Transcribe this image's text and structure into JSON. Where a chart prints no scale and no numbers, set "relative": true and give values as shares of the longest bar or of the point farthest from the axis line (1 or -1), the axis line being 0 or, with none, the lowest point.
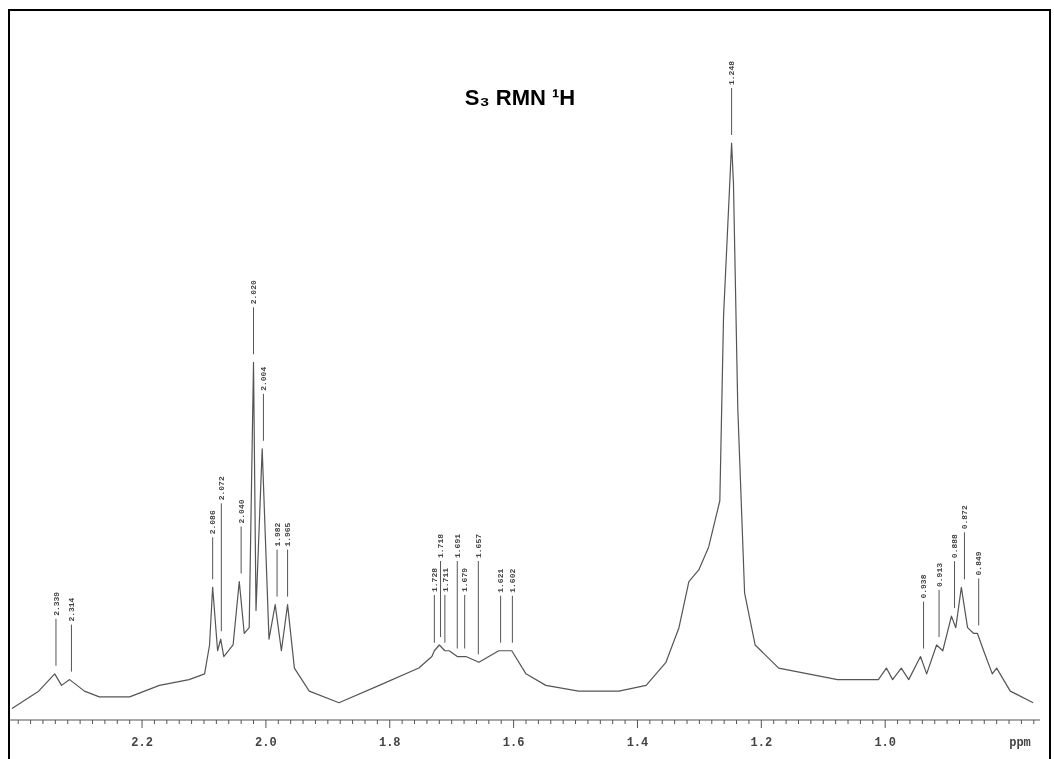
{
  "chart_data": {
    "type": "line",
    "title": "S₃ RMN ¹H",
    "xlabel": "ppm",
    "relative": true,
    "xlim": [
      2.41,
      0.75
    ],
    "xticks": [
      {
        "value": 2.4,
        "label": null
      },
      {
        "value": 2.38,
        "label": null
      },
      {
        "value": 2.36,
        "label": null
      },
      {
        "value": 2.34,
        "label": null
      },
      {
        "value": 2.32,
        "label": null
      },
      {
        "value": 2.3,
        "label": null
      },
      {
        "value": 2.28,
        "label": null
      },
      {
        "value": 2.26,
        "label": null
      },
      {
        "value": 2.24,
        "label": null
      },
      {
        "value": 2.22,
        "label": null
      },
      2.2,
      {
        "value": 2.18,
        "label": null
      },
      {
        "value": 2.16,
        "label": null
      },
      {
        "value": 2.14,
        "label": null
      },
      {
        "value": 2.12,
        "label": null
      },
      {
        "value": 2.1,
        "label": null
      },
      {
        "value": 2.08,
        "label": null
      },
      {
        "value": 2.06,
        "label": null
      },
      {
        "value": 2.04,
        "label": null
      },
      {
        "value": 2.02,
        "label": null
      },
      {
        "value": 2,
        "label": "2.0"
      },
      {
        "value": 1.98,
        "label": null
      },
      {
        "value": 1.96,
        "label": null
      },
      {
        "value": 1.94,
        "label": null
      },
      {
        "value": 1.92,
        "label": null
      },
      {
        "value": 1.9,
        "label": null
      },
      {
        "value": 1.88,
        "label": null
      },
      {
        "value": 1.86,
        "label": null
      },
      {
        "value": 1.84,
        "label": null
      },
      {
        "value": 1.82,
        "label": null
      },
      1.8,
      {
        "value": 1.78,
        "label": null
      },
      {
        "value": 1.76,
        "label": null
      },
      {
        "value": 1.74,
        "label": null
      },
      {
        "value": 1.72,
        "label": null
      },
      {
        "value": 1.7,
        "label": null
      },
      {
        "value": 1.68,
        "label": null
      },
      {
        "value": 1.66,
        "label": null
      },
      {
        "value": 1.64,
        "label": null
      },
      {
        "value": 1.62,
        "label": null
      },
      1.6,
      {
        "value": 1.58,
        "label": null
      },
      {
        "value": 1.56,
        "label": null
      },
      {
        "value": 1.54,
        "label": null
      },
      {
        "value": 1.52,
        "label": null
      },
      {
        "value": 1.5,
        "label": null
      },
      {
        "value": 1.48,
        "label": null
      },
      {
        "value": 1.46,
        "label": null
      },
      {
        "value": 1.44,
        "label": null
      },
      {
        "value": 1.42,
        "label": null
      },
      1.4,
      {
        "value": 1.38,
        "label": null
      },
      {
        "value": 1.36,
        "label": null
      },
      {
        "value": 1.34,
        "label": null
      },
      {
        "value": 1.32,
        "label": null
      },
      {
        "value": 1.3,
        "label": null
      },
      {
        "value": 1.28,
        "label": null
      },
      {
        "value": 1.26,
        "label": null
      },
      {
        "value": 1.24,
        "label": null
      },
      {
        "value": 1.22,
        "label": null
      },
      1.2,
      {
        "value": 1.18,
        "label": null
      },
      {
        "value": 1.16,
        "label": null
      },
      {
        "value": 1.14,
        "label": null
      },
      {
        "value": 1.12,
        "label": null
      },
      {
        "value": 1.1,
        "label": null
      },
      {
        "value": 1.08,
        "label": null
      },
      {
        "value": 1.06,
        "label": null
      },
      {
        "value": 1.04,
        "label": null
      },
      {
        "value": 1.02,
        "label": null
      },
      {
        "value": 1,
        "label": "1.0"
      },
      {
        "value": 0.98,
        "label": null
      },
      {
        "value": 0.96,
        "label": null
      },
      {
        "value": 0.94,
        "label": null
      },
      {
        "value": 0.92,
        "label": null
      },
      {
        "value": 0.9,
        "label": null
      },
      {
        "value": 0.88,
        "label": null
      },
      {
        "value": 0.86,
        "label": null
      },
      {
        "value": 0.84,
        "label": null
      },
      {
        "value": 0.82,
        "label": null
      },
      {
        "value": 0.8,
        "label": null
      },
      {
        "value": 0.78,
        "label": null
      },
      {
        "value": 0.76,
        "label": null
      }
    ],
    "series": [
      {
        "color": "#555555",
        "x": [
          2.41,
          2.367,
          2.341,
          2.33,
          2.317,
          2.293,
          2.269,
          2.22,
          2.172,
          2.124,
          2.099,
          2.091,
          2.086,
          2.078,
          2.073,
          2.068,
          2.053,
          2.043,
          2.035,
          2.027,
          2.02,
          2.016,
          2.006,
          1.995,
          1.985,
          1.975,
          1.965,
          1.954,
          1.93,
          1.882,
          1.817,
          1.753,
          1.732,
          1.728,
          1.72,
          1.711,
          1.704,
          1.691,
          1.677,
          1.656,
          1.624,
          1.603,
          1.58,
          1.548,
          1.495,
          1.43,
          1.386,
          1.354,
          1.333,
          1.317,
          1.301,
          1.293,
          1.285,
          1.267,
          1.261,
          1.251,
          1.248,
          1.245,
          1.238,
          1.227,
          1.21,
          1.172,
          1.077,
          1.011,
          0.998,
          0.988,
          0.974,
          0.962,
          0.943,
          0.933,
          0.917,
          0.907,
          0.893,
          0.886,
          0.877,
          0.867,
          0.857,
          0.851,
          0.841,
          0.827,
          0.82,
          0.798,
          0.761
        ],
        "values": [
          0.02,
          0.05,
          0.08,
          0.06,
          0.07,
          0.05,
          0.04,
          0.04,
          0.06,
          0.07,
          0.08,
          0.13,
          0.23,
          0.12,
          0.14,
          0.11,
          0.13,
          0.24,
          0.15,
          0.16,
          0.62,
          0.19,
          0.47,
          0.14,
          0.2,
          0.12,
          0.2,
          0.09,
          0.05,
          0.03,
          0.06,
          0.09,
          0.11,
          0.12,
          0.13,
          0.12,
          0.12,
          0.11,
          0.11,
          0.1,
          0.12,
          0.12,
          0.08,
          0.06,
          0.05,
          0.05,
          0.06,
          0.1,
          0.16,
          0.24,
          0.26,
          0.28,
          0.3,
          0.38,
          0.7,
          0.93,
          1,
          0.93,
          0.54,
          0.22,
          0.13,
          0.09,
          0.07,
          0.07,
          0.09,
          0.07,
          0.09,
          0.07,
          0.11,
          0.08,
          0.13,
          0.12,
          0.18,
          0.16,
          0.23,
          0.16,
          0.15,
          0.15,
          0.12,
          0.08,
          0.09,
          0.05,
          0.03
        ]
      }
    ],
    "annotations": [
      {
        "text": "2.339",
        "x": 2.339,
        "y": 0.08
      },
      {
        "text": "2.314",
        "x": 2.314,
        "y": 0.07
      },
      {
        "text": "2.086",
        "x": 2.086,
        "y": 0.23
      },
      {
        "text": "2.072",
        "x": 2.072,
        "y": 0.14
      },
      {
        "text": "2.040",
        "x": 2.04,
        "y": 0.24
      },
      {
        "text": "2.020",
        "x": 2.02,
        "y": 0.62
      },
      {
        "text": "2.004",
        "x": 2.004,
        "y": 0.47
      },
      {
        "text": "1.982",
        "x": 1.982,
        "y": 0.2
      },
      {
        "text": "1.965",
        "x": 1.965,
        "y": 0.2
      },
      {
        "text": "1.728",
        "x": 1.728,
        "y": 0.12
      },
      {
        "text": "1.718",
        "x": 1.718,
        "y": 0.13
      },
      {
        "text": "1.711",
        "x": 1.711,
        "y": 0.12
      },
      {
        "text": "1.691",
        "x": 1.691,
        "y": 0.11
      },
      {
        "text": "1.679",
        "x": 1.679,
        "y": 0.11
      },
      {
        "text": "1.657",
        "x": 1.657,
        "y": 0.1
      },
      {
        "text": "1.621",
        "x": 1.621,
        "y": 0.12
      },
      {
        "text": "1.602",
        "x": 1.602,
        "y": 0.12
      },
      {
        "text": "1.248",
        "x": 1.248,
        "y": 1
      },
      {
        "text": "0.938",
        "x": 0.938,
        "y": 0.11
      },
      {
        "text": "0.913",
        "x": 0.913,
        "y": 0.13
      },
      {
        "text": "0.888",
        "x": 0.888,
        "y": 0.18
      },
      {
        "text": "0.872",
        "x": 0.872,
        "y": 0.23
      },
      {
        "text": "0.849",
        "x": 0.849,
        "y": 0.15
      }
    ]
  }
}
